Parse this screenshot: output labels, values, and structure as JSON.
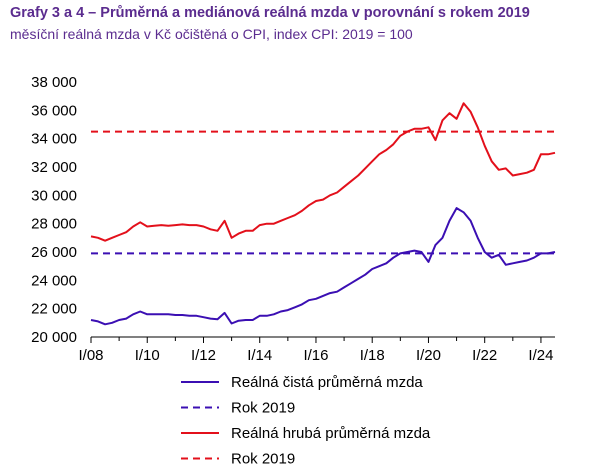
{
  "header": {
    "title": "Grafy 3 a 4 – Průměrná a mediánová reálná mzda v porovnání s rokem 2019",
    "subtitle": "měsíční reálná mzda v Kč očištěná o CPI, index CPI: 2019 = 100"
  },
  "colors": {
    "net": "#3b0fb3",
    "gross": "#e3101b",
    "axis": "#000000",
    "text_accent": "#5b2c8f"
  },
  "chart_data": {
    "type": "line",
    "title": "Grafy 3 a 4 – Průměrná a mediánová reálná mzda v porovnání s rokem 2019",
    "subtitle": "měsíční reálná mzda v Kč očištěná o CPI, index CPI: 2019 = 100",
    "xlabel": "",
    "ylabel": "",
    "x_tick_labels": [
      "I/08",
      "I/10",
      "I/12",
      "I/14",
      "I/16",
      "I/18",
      "I/20",
      "I/22",
      "I/24"
    ],
    "y_tick_labels": [
      "20 000",
      "22 000",
      "24 000",
      "26 000",
      "28 000",
      "30 000",
      "32 000",
      "34 000",
      "36 000",
      "38 000"
    ],
    "ylim": [
      20000,
      38000
    ],
    "grid": false,
    "legend_position": "bottom",
    "x": [
      "I/08",
      "II/08",
      "III/08",
      "IV/08",
      "I/09",
      "II/09",
      "III/09",
      "IV/09",
      "I/10",
      "II/10",
      "III/10",
      "IV/10",
      "I/11",
      "II/11",
      "III/11",
      "IV/11",
      "I/12",
      "II/12",
      "III/12",
      "IV/12",
      "I/13",
      "II/13",
      "III/13",
      "IV/13",
      "I/14",
      "II/14",
      "III/14",
      "IV/14",
      "I/15",
      "II/15",
      "III/15",
      "IV/15",
      "I/16",
      "II/16",
      "III/16",
      "IV/16",
      "I/17",
      "II/17",
      "III/17",
      "IV/17",
      "I/18",
      "II/18",
      "III/18",
      "IV/18",
      "I/19",
      "II/19",
      "III/19",
      "IV/19",
      "I/20",
      "II/20",
      "III/20",
      "IV/20",
      "I/21",
      "II/21",
      "III/21",
      "IV/21",
      "I/22",
      "II/22",
      "III/22",
      "IV/22",
      "I/23",
      "II/23",
      "III/23",
      "IV/23",
      "I/24",
      "II/24",
      "III/24"
    ],
    "series": [
      {
        "name": "Reálná čistá průměrná mzda",
        "style": "solid",
        "values": [
          21200,
          21100,
          20900,
          21000,
          21200,
          21300,
          21600,
          21800,
          21600,
          21600,
          21600,
          21600,
          21550,
          21550,
          21500,
          21500,
          21400,
          21300,
          21250,
          21700,
          20950,
          21150,
          21200,
          21200,
          21500,
          21500,
          21600,
          21800,
          21900,
          22100,
          22300,
          22600,
          22700,
          22900,
          23100,
          23200,
          23500,
          23800,
          24100,
          24400,
          24800,
          25000,
          25200,
          25600,
          25900,
          26000,
          26100,
          26000,
          25300,
          26500,
          27000,
          28200,
          29100,
          28800,
          28200,
          27000,
          26000,
          25600,
          25800,
          25100,
          25200,
          25300,
          25400,
          25600,
          25900,
          25900,
          26000
        ]
      },
      {
        "name": "Rok 2019",
        "style": "dashed",
        "values": [
          25900,
          25900,
          25900,
          25900,
          25900,
          25900,
          25900,
          25900,
          25900,
          25900,
          25900,
          25900,
          25900,
          25900,
          25900,
          25900,
          25900,
          25900,
          25900,
          25900,
          25900,
          25900,
          25900,
          25900,
          25900,
          25900,
          25900,
          25900,
          25900,
          25900,
          25900,
          25900,
          25900,
          25900,
          25900,
          25900,
          25900,
          25900,
          25900,
          25900,
          25900,
          25900,
          25900,
          25900,
          25900,
          25900,
          25900,
          25900,
          25900,
          25900,
          25900,
          25900,
          25900,
          25900,
          25900,
          25900,
          25900,
          25900,
          25900,
          25900,
          25900,
          25900,
          25900,
          25900,
          25900,
          25900,
          25900
        ]
      },
      {
        "name": "Reálná hrubá průměrná mzda",
        "style": "solid",
        "values": [
          27100,
          27000,
          26800,
          27000,
          27200,
          27400,
          27800,
          28100,
          27800,
          27850,
          27900,
          27850,
          27900,
          27950,
          27900,
          27900,
          27800,
          27600,
          27500,
          28200,
          27000,
          27300,
          27500,
          27500,
          27900,
          28000,
          28000,
          28200,
          28400,
          28600,
          28900,
          29300,
          29600,
          29700,
          30000,
          30200,
          30600,
          31000,
          31400,
          31900,
          32400,
          32900,
          33200,
          33600,
          34200,
          34500,
          34700,
          34700,
          34800,
          33900,
          35300,
          35800,
          35400,
          36500,
          35900,
          34800,
          33500,
          32400,
          31800,
          31900,
          31400,
          31500,
          31600,
          31800,
          32900,
          32900,
          33000
        ]
      },
      {
        "name": "Rok 2019",
        "style": "dashed",
        "values": [
          34500,
          34500,
          34500,
          34500,
          34500,
          34500,
          34500,
          34500,
          34500,
          34500,
          34500,
          34500,
          34500,
          34500,
          34500,
          34500,
          34500,
          34500,
          34500,
          34500,
          34500,
          34500,
          34500,
          34500,
          34500,
          34500,
          34500,
          34500,
          34500,
          34500,
          34500,
          34500,
          34500,
          34500,
          34500,
          34500,
          34500,
          34500,
          34500,
          34500,
          34500,
          34500,
          34500,
          34500,
          34500,
          34500,
          34500,
          34500,
          34500,
          34500,
          34500,
          34500,
          34500,
          34500,
          34500,
          34500,
          34500,
          34500,
          34500,
          34500,
          34500,
          34500,
          34500,
          34500,
          34500,
          34500,
          34500
        ]
      }
    ]
  }
}
